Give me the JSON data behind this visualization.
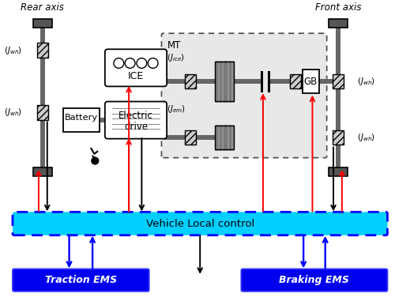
{
  "bg_color": "#ffffff",
  "rear_axis_label": "Rear axis",
  "front_axis_label": "Front axis",
  "vlc_label": "Vehicle Local control",
  "traction_label": "Traction EMS",
  "braking_label": "Braking EMS",
  "vlc_color": "#00cfff",
  "vlc_border_color": "#0000ff",
  "traction_color": "#0000ee",
  "braking_color": "#0000ee",
  "shaft_color": "#666666",
  "arrow_red": "#ff0000",
  "arrow_black": "#000000",
  "arrow_blue": "#0000ff",
  "coupling_hatch": "///",
  "coupling_face": "#cccccc",
  "wavy_face": "#888888"
}
